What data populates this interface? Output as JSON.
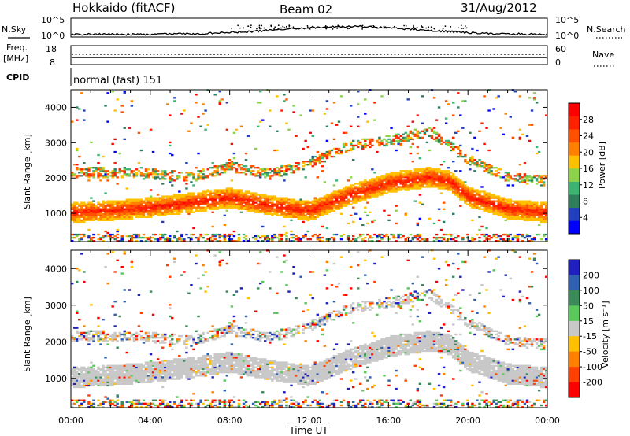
{
  "header": {
    "station": "Hokkaido (fitACF)",
    "beam": "Beam 02",
    "date": "31/Aug/2012"
  },
  "top_panels": {
    "nsky_label": "N.Sky",
    "nsearch_label": "N.Search",
    "nsky_ticks": [
      "10^5",
      "10^0"
    ],
    "nsearch_ticks": [
      "10^5",
      "10^0"
    ],
    "freq_label_line1": "Freq.",
    "freq_label_line2": "[MHz]",
    "freq_ticks": [
      "18",
      "8"
    ],
    "nave_label": "Nave",
    "nave_ticks": [
      "60",
      "0"
    ],
    "cpid_label": "CPID",
    "cpid_text": "normal (fast) 151"
  },
  "chart_data": [
    {
      "type": "heatmap",
      "name": "power",
      "ylabel": "Slant Range [km]",
      "xlabel": "Time UT",
      "xlim_hours": [
        0,
        24
      ],
      "ylim_km": [
        200,
        4500
      ],
      "y_ticks": [
        "1000",
        "2000",
        "3000",
        "4000"
      ],
      "x_ticks": [
        "00:00",
        "04:00",
        "08:00",
        "12:00",
        "16:00",
        "20:00",
        "00:00"
      ],
      "colorbar_label": "Power [dB]",
      "colorbar_ticks": [
        "28",
        "24",
        "20",
        "16",
        "12",
        "8",
        "4"
      ],
      "colorbar_colors": [
        "#0000ff",
        "#2040c0",
        "#2e7d5b",
        "#3cb371",
        "#8cd24a",
        "#ffc000",
        "#ff8000",
        "#ff5000",
        "#ff2000",
        "#ff0000"
      ],
      "main_band_km": [
        [
          0,
          1000
        ],
        [
          2,
          1060
        ],
        [
          4,
          1150
        ],
        [
          6,
          1280
        ],
        [
          8,
          1420
        ],
        [
          10,
          1200
        ],
        [
          12,
          1050
        ],
        [
          14,
          1500
        ],
        [
          16,
          1850
        ],
        [
          18,
          2000
        ],
        [
          19,
          1900
        ],
        [
          20,
          1450
        ],
        [
          22,
          1100
        ],
        [
          24,
          1000
        ]
      ],
      "upper_band_km": [
        [
          0,
          2150
        ],
        [
          4,
          2100
        ],
        [
          6,
          2000
        ],
        [
          8,
          2300
        ],
        [
          10,
          2100
        ],
        [
          12,
          2400
        ],
        [
          14,
          2900
        ],
        [
          16,
          3050
        ],
        [
          18,
          3300
        ],
        [
          20,
          2500
        ],
        [
          22,
          2000
        ],
        [
          24,
          1900
        ]
      ]
    },
    {
      "type": "heatmap",
      "name": "velocity",
      "ylabel": "Slant Range [km]",
      "xlabel": "Time UT",
      "xlim_hours": [
        0,
        24
      ],
      "ylim_km": [
        200,
        4500
      ],
      "y_ticks": [
        "1000",
        "2000",
        "3000",
        "4000"
      ],
      "x_ticks": [
        "00:00",
        "04:00",
        "08:00",
        "12:00",
        "16:00",
        "20:00",
        "00:00"
      ],
      "colorbar_label": "Velocity [m s⁻¹]",
      "colorbar_ticks": [
        "200",
        "100",
        "50",
        "15",
        "-15",
        "-50",
        "-100",
        "-200"
      ],
      "colorbar_colors": [
        "#2020c0",
        "#3060b0",
        "#3a8a5a",
        "#5ac85a",
        "#c8c8c8",
        "#ffc000",
        "#ff8000",
        "#ff4000",
        "#ff0000"
      ]
    }
  ]
}
